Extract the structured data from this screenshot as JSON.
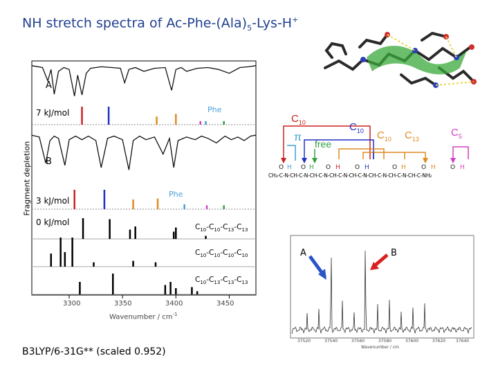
{
  "title": {
    "prefix": "NH stretch spectra of Ac-Phe-(Ala)",
    "sub": "5",
    "middle": "-Lys-H",
    "sup": "+"
  },
  "left_panel": {
    "label_a": "A",
    "label_b": "B",
    "energy_a": "7 kJ/mol",
    "energy_b": "3 kJ/mol",
    "energy_c": "0 kJ/mol",
    "phe_a": "Phe",
    "phe_b": "Phe",
    "ylabel": "Fragment depletion",
    "xlabel": "Wavenumber / cm",
    "xlabel_sup": "-1",
    "xticks": [
      "3300",
      "3350",
      "3400",
      "3450"
    ],
    "conformers": [
      {
        "p": [
          "C",
          "10",
          "-C",
          "10",
          "-C",
          "13",
          "-C",
          "13"
        ]
      },
      {
        "p": [
          "C",
          "10",
          "-C",
          "10",
          "-C",
          "10",
          "-C",
          "10"
        ]
      },
      {
        "p": [
          "C",
          "10",
          "-C",
          "13",
          "-C",
          "13",
          "-C",
          "13"
        ]
      }
    ]
  },
  "chart_data": {
    "type": "line",
    "xlim": [
      3265,
      3475
    ],
    "spectrum_a": {
      "x": [
        3265,
        3275,
        3280,
        3283,
        3286,
        3290,
        3295,
        3300,
        3305,
        3308,
        3312,
        3316,
        3320,
        3330,
        3340,
        3348,
        3352,
        3356,
        3362,
        3370,
        3380,
        3390,
        3396,
        3400,
        3405,
        3410,
        3420,
        3430,
        3440,
        3450,
        3460,
        3468,
        3475
      ],
      "y": [
        0.95,
        0.9,
        0.55,
        0.85,
        0.2,
        0.8,
        0.9,
        0.85,
        0.15,
        0.7,
        0.18,
        0.75,
        0.88,
        0.92,
        0.9,
        0.88,
        0.5,
        0.85,
        0.9,
        0.8,
        0.88,
        0.9,
        0.3,
        0.85,
        0.9,
        0.8,
        0.88,
        0.9,
        0.85,
        0.75,
        0.9,
        0.92,
        0.95
      ]
    },
    "sticks_a": {
      "x": [
        3312,
        3337,
        3382,
        3400,
        3423,
        3428,
        3445
      ],
      "h": [
        1.0,
        1.0,
        0.45,
        0.6,
        0.2,
        0.2,
        0.2
      ],
      "colors": [
        "#cc2020",
        "#2030c0",
        "#e08a20",
        "#e08a20",
        "#d040c0",
        "#40a0d0",
        "#30a040"
      ]
    },
    "spectrum_b": {
      "x": [
        3265,
        3272,
        3278,
        3282,
        3286,
        3290,
        3296,
        3300,
        3306,
        3312,
        3318,
        3325,
        3330,
        3336,
        3342,
        3350,
        3356,
        3360,
        3366,
        3372,
        3380,
        3388,
        3394,
        3398,
        3402,
        3410,
        3418,
        3424,
        3430,
        3438,
        3446,
        3452,
        3458,
        3464,
        3470,
        3475
      ],
      "y": [
        0.92,
        0.88,
        0.3,
        0.8,
        0.9,
        0.85,
        0.25,
        0.82,
        0.9,
        0.82,
        0.9,
        0.8,
        0.2,
        0.85,
        0.9,
        0.82,
        0.15,
        0.8,
        0.9,
        0.82,
        0.88,
        0.5,
        0.85,
        0.2,
        0.8,
        0.88,
        0.82,
        0.9,
        0.85,
        0.75,
        0.9,
        0.82,
        0.88,
        0.8,
        0.9,
        0.92
      ]
    },
    "sticks_b": {
      "x": [
        3305,
        3333,
        3360,
        3383,
        3408,
        3429,
        3445
      ],
      "h": [
        1.0,
        1.0,
        0.5,
        0.55,
        0.25,
        0.2,
        0.2
      ],
      "colors": [
        "#cc2020",
        "#2030c0",
        "#e08a20",
        "#e08a20",
        "#40a0d0",
        "#d040c0",
        "#30a040"
      ]
    },
    "calc_1": {
      "x": [
        3313,
        3338,
        3357,
        3362,
        3398,
        3400,
        3428
      ],
      "h": [
        1.0,
        0.95,
        0.45,
        0.6,
        0.35,
        0.55,
        0.15
      ]
    },
    "calc_2": {
      "x": [
        3283,
        3292,
        3296,
        3303,
        3323,
        3360,
        3381
      ],
      "h": [
        0.45,
        1.0,
        0.5,
        1.0,
        0.15,
        0.2,
        0.15
      ]
    },
    "calc_3": {
      "x": [
        3310,
        3341,
        3390,
        3395,
        3400,
        3415,
        3420
      ],
      "h": [
        0.6,
        1.0,
        0.45,
        0.6,
        0.3,
        0.35,
        0.15
      ]
    }
  },
  "right_panel": {
    "hbond_labels": {
      "c10_top": "C",
      "c10_top_sub": "10",
      "pi": "π",
      "free": "free",
      "c10_mid": "C",
      "c10_mid_sub": "10",
      "c10_right": "C",
      "c10_right_sub": "10",
      "c13": "C",
      "c13_sub": "13",
      "c5": "C",
      "c5_sub": "5"
    },
    "backbone": "CH₃-C-N-CH-C-N-CH-C-N-CH-C-N-CH-C-N-CH-C-N-CH-C-N-CH-C-NH₂",
    "ir_label_a": "A",
    "ir_label_b": "B",
    "ir_xticks": [
      "37520",
      "37540",
      "37560",
      "37580",
      "37600",
      "37620",
      "37640"
    ],
    "ir_xlabel": "Wavenumber / cm"
  },
  "footer": {
    "method": "B3LYP/6-31G** (scaled 0.952)"
  }
}
